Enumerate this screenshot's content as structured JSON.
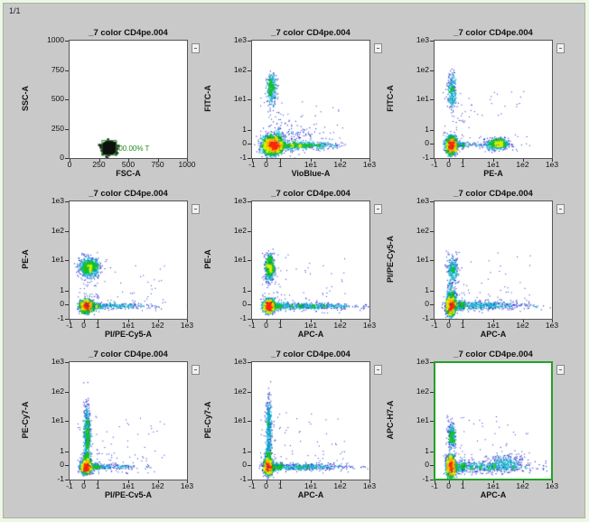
{
  "page_indicator": "1/1",
  "sample_title": "_7 color CD4pe.004",
  "accent_selected_border": "#24a12a",
  "plots": [
    {
      "title": "_7 color CD4pe.004",
      "x_label": "FSC-A",
      "y_label": "SSC-A",
      "scale": "linear",
      "x_ticks": [
        "0",
        "250",
        "500",
        "750",
        "1000"
      ],
      "y_ticks": [
        "0",
        "250",
        "500",
        "750",
        "1000"
      ],
      "gate_label": "100.00% T",
      "chart_data": {
        "type": "scatter",
        "clusters": [
          {
            "x": 330,
            "y": 95,
            "sx": 25,
            "sy": 22,
            "n": 900,
            "style": "black"
          }
        ]
      }
    },
    {
      "title": "_7 color CD4pe.004",
      "x_label": "VioBlue-A",
      "y_label": "FITC-A",
      "scale": "biexp",
      "x_ticks": [
        "-1",
        "0",
        "1",
        "1e1",
        "1e2",
        "1e3"
      ],
      "y_ticks": [
        "-1",
        "0",
        "1",
        "1e1",
        "1e2",
        "1e3"
      ],
      "chart_data": {
        "type": "scatter",
        "clusters": [
          {
            "x": 0.4,
            "y": 0,
            "sx": 0.35,
            "sy": 0.3,
            "n": 2600
          },
          {
            "x": 0.3,
            "y": 1.95,
            "sx": 0.18,
            "sy": 0.16,
            "n": 300
          },
          {
            "x": 1.4,
            "y": 0.0,
            "sx": 0.4,
            "sy": 0.12,
            "n": 500
          },
          {
            "x": 1.1,
            "y": 0.9,
            "sx": 0.5,
            "sy": 0.25,
            "n": 120
          }
        ]
      }
    },
    {
      "title": "_7 color CD4pe.004",
      "x_label": "PE-A",
      "y_label": "FITC-A",
      "scale": "biexp",
      "x_ticks": [
        "-1",
        "0",
        "1",
        "1e1",
        "1e2",
        "1e3"
      ],
      "y_ticks": [
        "-1",
        "0",
        "1",
        "1e1",
        "1e2",
        "1e3"
      ],
      "chart_data": {
        "type": "scatter",
        "clusters": [
          {
            "x": 0.1,
            "y": 0,
            "sx": 0.18,
            "sy": 0.28,
            "n": 1900
          },
          {
            "x": 0.15,
            "y": 1.9,
            "sx": 0.15,
            "sy": 0.2,
            "n": 260
          },
          {
            "x": 1.75,
            "y": 0.1,
            "sx": 0.12,
            "sy": 0.2,
            "n": 600
          },
          {
            "x": 0.9,
            "y": 0.05,
            "sx": 0.35,
            "sy": 0.08,
            "n": 150
          }
        ]
      }
    },
    {
      "title": "_7 color CD4pe.004",
      "x_label": "PI/PE-Cy5-A",
      "y_label": "PE-A",
      "scale": "biexp",
      "x_ticks": [
        "-1",
        "0",
        "1",
        "1e1",
        "1e2",
        "1e3"
      ],
      "y_ticks": [
        "-1",
        "0",
        "1",
        "1e1",
        "1e2",
        "1e3"
      ],
      "chart_data": {
        "type": "scatter",
        "clusters": [
          {
            "x": 0.1,
            "y": 0,
            "sx": 0.22,
            "sy": 0.2,
            "n": 1700
          },
          {
            "x": 0.3,
            "y": 1.55,
            "sx": 0.35,
            "sy": 0.1,
            "n": 800
          },
          {
            "x": 1.2,
            "y": 0.0,
            "sx": 0.5,
            "sy": 0.1,
            "n": 350
          }
        ]
      }
    },
    {
      "title": "_7 color CD4pe.004",
      "x_label": "APC-A",
      "y_label": "PE-A",
      "scale": "biexp",
      "x_ticks": [
        "-1",
        "0",
        "1",
        "1e1",
        "1e2",
        "1e3"
      ],
      "y_ticks": [
        "-1",
        "0",
        "1",
        "1e1",
        "1e2",
        "1e3"
      ],
      "chart_data": {
        "type": "scatter",
        "clusters": [
          {
            "x": 0.1,
            "y": 0,
            "sx": 0.18,
            "sy": 0.22,
            "n": 1600
          },
          {
            "x": 0.15,
            "y": 1.55,
            "sx": 0.15,
            "sy": 0.15,
            "n": 600
          },
          {
            "x": 1.4,
            "y": 0.0,
            "sx": 0.6,
            "sy": 0.12,
            "n": 650
          }
        ]
      }
    },
    {
      "title": "_7 color CD4pe.004",
      "x_label": "APC-A",
      "y_label": "PI/PE-Cy5-A",
      "scale": "biexp",
      "x_ticks": [
        "-1",
        "0",
        "1",
        "1e1",
        "1e2",
        "1e3"
      ],
      "y_ticks": [
        "-1",
        "0",
        "1",
        "1e1",
        "1e2",
        "1e3"
      ],
      "chart_data": {
        "type": "scatter",
        "clusters": [
          {
            "x": 0.05,
            "y": 0,
            "sx": 0.15,
            "sy": 0.3,
            "n": 1800
          },
          {
            "x": 0.2,
            "y": 1.5,
            "sx": 0.18,
            "sy": 0.12,
            "n": 250
          },
          {
            "x": 1.3,
            "y": 0.05,
            "sx": 0.6,
            "sy": 0.15,
            "n": 600
          },
          {
            "x": 0.1,
            "y": 0.8,
            "sx": 0.15,
            "sy": 0.35,
            "n": 250
          }
        ]
      }
    },
    {
      "title": "_7 color CD4pe.004",
      "x_label": "PI/PE-Cv5-A",
      "y_label": "PE-Cy7-A",
      "scale": "biexp",
      "x_ticks": [
        "-1",
        "0",
        "1",
        "1e1",
        "1e2",
        "1e3"
      ],
      "y_ticks": [
        "-1",
        "0",
        "1",
        "1e1",
        "1e2",
        "1e3"
      ],
      "chart_data": {
        "type": "scatter",
        "clusters": [
          {
            "x": 0.1,
            "y": 0,
            "sx": 0.18,
            "sy": 0.22,
            "n": 1600
          },
          {
            "x": 0.15,
            "y": 1.5,
            "sx": 0.12,
            "sy": 0.3,
            "n": 450
          },
          {
            "x": 1.0,
            "y": 0.0,
            "sx": 0.45,
            "sy": 0.1,
            "n": 300
          },
          {
            "x": 0.1,
            "y": 0.7,
            "sx": 0.12,
            "sy": 0.35,
            "n": 300
          }
        ]
      }
    },
    {
      "title": "_7 color CD4pe.004",
      "x_label": "APC-A",
      "y_label": "PE-Cy7-A",
      "scale": "biexp",
      "x_ticks": [
        "-1",
        "0",
        "1",
        "1e1",
        "1e2",
        "1e3"
      ],
      "y_ticks": [
        "-1",
        "0",
        "1",
        "1e1",
        "1e2",
        "1e3"
      ],
      "chart_data": {
        "type": "scatter",
        "clusters": [
          {
            "x": 0.05,
            "y": 0,
            "sx": 0.15,
            "sy": 0.25,
            "n": 1500
          },
          {
            "x": 0.1,
            "y": 1.6,
            "sx": 0.1,
            "sy": 0.3,
            "n": 350
          },
          {
            "x": 1.3,
            "y": 0.0,
            "sx": 0.6,
            "sy": 0.12,
            "n": 600
          },
          {
            "x": 0.05,
            "y": 0.8,
            "sx": 0.1,
            "sy": 0.35,
            "n": 300
          }
        ]
      }
    },
    {
      "title": "_7 color CD4pe.004",
      "x_label": "APC-A",
      "y_label": "APC-H7-A",
      "scale": "biexp",
      "x_ticks": [
        "-1",
        "0",
        "1",
        "1e1",
        "1e2",
        "1e3"
      ],
      "y_ticks": [
        "-1",
        "0",
        "1",
        "1e1",
        "1e2",
        "1e3"
      ],
      "selected": true,
      "chart_data": {
        "type": "scatter",
        "clusters": [
          {
            "x": 0.0,
            "y": 0.1,
            "sx": 0.15,
            "sy": 0.35,
            "n": 1700
          },
          {
            "x": 0.05,
            "y": 1.4,
            "sx": 0.12,
            "sy": 0.15,
            "n": 250
          },
          {
            "x": 1.4,
            "y": 0.05,
            "sx": 0.6,
            "sy": 0.2,
            "n": 650
          },
          {
            "x": 1.9,
            "y": 0.4,
            "sx": 0.2,
            "sy": 0.3,
            "n": 200
          }
        ]
      }
    }
  ]
}
